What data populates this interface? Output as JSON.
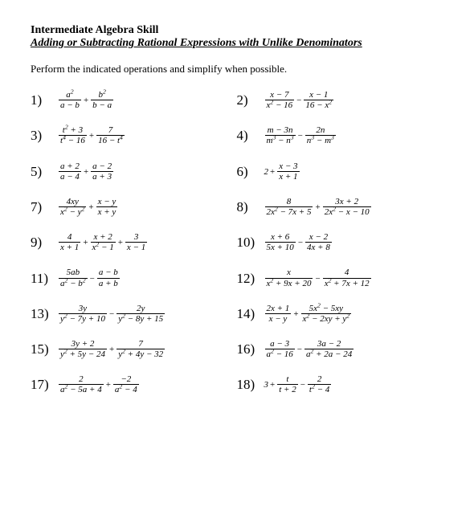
{
  "header": {
    "title1": "Intermediate Algebra Skill",
    "title2": "Adding or Subtracting Rational Expressions with Unlike Denominators"
  },
  "instructions": "Perform the indicated operations and simplify when possible.",
  "style": {
    "background_color": "#ffffff",
    "text_color": "#000000",
    "title_fontsize": 14,
    "body_fontsize": 13,
    "problem_number_fontsize": 17,
    "expr_fontsize": 11,
    "font_family": "Times New Roman"
  },
  "problems": [
    {
      "n": "1)",
      "frac1_num": "a²",
      "frac1_den": "a − b",
      "op1": "+",
      "frac2_num": "b²",
      "frac2_den": "b − a"
    },
    {
      "n": "2)",
      "frac1_num": "x − 7",
      "frac1_den": "x² − 16",
      "op1": "−",
      "frac2_num": "x − 1",
      "frac2_den": "16 − x²"
    },
    {
      "n": "3)",
      "frac1_num": "t² + 3",
      "frac1_den": "t⁴ − 16",
      "op1": "+",
      "frac2_num": "7",
      "frac2_den": "16 − t⁴"
    },
    {
      "n": "4)",
      "frac1_num": "m − 3n",
      "frac1_den": "m³ − n³",
      "op1": "−",
      "frac2_num": "2n",
      "frac2_den": "n³ − m³"
    },
    {
      "n": "5)",
      "frac1_num": "a + 2",
      "frac1_den": "a − 4",
      "op1": "+",
      "frac2_num": "a − 2",
      "frac2_den": "a + 3"
    },
    {
      "n": "6)",
      "lead": "2",
      "op0": "+",
      "frac1_num": "x − 3",
      "frac1_den": "x + 1"
    },
    {
      "n": "7)",
      "frac1_num": "4xy",
      "frac1_den": "x² − y²",
      "op1": "+",
      "frac2_num": "x − y",
      "frac2_den": "x + y"
    },
    {
      "n": "8)",
      "frac1_num": "8",
      "frac1_den": "2x² − 7x + 5",
      "op1": "+",
      "frac2_num": "3x + 2",
      "frac2_den": "2x² − x − 10"
    },
    {
      "n": "9)",
      "frac1_num": "4",
      "frac1_den": "x + 1",
      "op1": "+",
      "frac2_num": "x + 2",
      "frac2_den": "x² − 1",
      "op2": "+",
      "frac3_num": "3",
      "frac3_den": "x − 1"
    },
    {
      "n": "10)",
      "frac1_num": "x + 6",
      "frac1_den": "5x + 10",
      "op1": "−",
      "frac2_num": "x − 2",
      "frac2_den": "4x + 8"
    },
    {
      "n": "11)",
      "frac1_num": "5ab",
      "frac1_den": "a² − b²",
      "op1": "−",
      "frac2_num": "a − b",
      "frac2_den": "a + b"
    },
    {
      "n": "12)",
      "frac1_num": "x",
      "frac1_den": "x² + 9x + 20",
      "op1": "−",
      "frac2_num": "4",
      "frac2_den": "x² + 7x + 12"
    },
    {
      "n": "13)",
      "frac1_num": "3y",
      "frac1_den": "y² − 7y + 10",
      "op1": "−",
      "frac2_num": "2y",
      "frac2_den": "y² − 8y + 15"
    },
    {
      "n": "14)",
      "frac1_num": "2x + 1",
      "frac1_den": "x − y",
      "op1": "+",
      "frac2_num": "5x² − 5xy",
      "frac2_den": "x² − 2xy + y²"
    },
    {
      "n": "15)",
      "frac1_num": "3y + 2",
      "frac1_den": "y² + 5y − 24",
      "op1": "+",
      "frac2_num": "7",
      "frac2_den": "y² + 4y − 32"
    },
    {
      "n": "16)",
      "frac1_num": "a − 3",
      "frac1_den": "a² − 16",
      "op1": "−",
      "frac2_num": "3a − 2",
      "frac2_den": "a² + 2a − 24"
    },
    {
      "n": "17)",
      "frac1_num": "2",
      "frac1_den": "a² − 5a + 4",
      "op1": "+",
      "frac2_num": "−2",
      "frac2_den": "a² − 4"
    },
    {
      "n": "18)",
      "lead": "3",
      "op0": "+",
      "frac1_num": "t",
      "frac1_den": "t + 2",
      "op1": "−",
      "frac2_num": "2",
      "frac2_den": "t² − 4"
    }
  ]
}
